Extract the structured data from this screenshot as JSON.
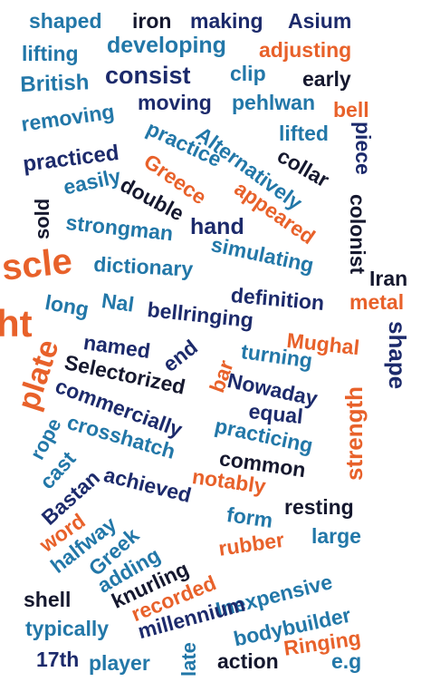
{
  "palette": {
    "navy": "#1c2a6b",
    "blue": "#2277a8",
    "orange": "#e8612a",
    "black": "#15182e"
  },
  "words": [
    {
      "text": "shaped",
      "color": "#2277a8"
    },
    {
      "text": "iron",
      "color": "#15182e"
    },
    {
      "text": "making",
      "color": "#1c2a6b"
    },
    {
      "text": "Asium",
      "color": "#1c2a6b"
    },
    {
      "text": "lifting",
      "color": "#2277a8"
    },
    {
      "text": "developing",
      "color": "#2277a8"
    },
    {
      "text": "adjusting",
      "color": "#e8612a"
    },
    {
      "text": "British",
      "color": "#2277a8"
    },
    {
      "text": "consist",
      "color": "#1c2a6b"
    },
    {
      "text": "clip",
      "color": "#2277a8"
    },
    {
      "text": "early",
      "color": "#15182e"
    },
    {
      "text": "removing",
      "color": "#2277a8"
    },
    {
      "text": "moving",
      "color": "#1c2a6b"
    },
    {
      "text": "pehlwan",
      "color": "#2277a8"
    },
    {
      "text": "bell",
      "color": "#e8612a"
    },
    {
      "text": "practiced",
      "color": "#1c2a6b"
    },
    {
      "text": "practice",
      "color": "#2277a8"
    },
    {
      "text": "Alternatively",
      "color": "#2277a8"
    },
    {
      "text": "lifted",
      "color": "#2277a8"
    },
    {
      "text": "collar",
      "color": "#15182e"
    },
    {
      "text": "piece",
      "color": "#1c2a6b"
    },
    {
      "text": "Greece",
      "color": "#e8612a"
    },
    {
      "text": "easily",
      "color": "#2277a8"
    },
    {
      "text": "double",
      "color": "#15182e"
    },
    {
      "text": "appeared",
      "color": "#e8612a"
    },
    {
      "text": "colonist",
      "color": "#15182e"
    },
    {
      "text": "sold",
      "color": "#15182e"
    },
    {
      "text": "strongman",
      "color": "#2277a8"
    },
    {
      "text": "hand",
      "color": "#1c2a6b"
    },
    {
      "text": "simulating",
      "color": "#2277a8"
    },
    {
      "text": "scle",
      "color": "#e8612a"
    },
    {
      "text": "dictionary",
      "color": "#2277a8"
    },
    {
      "text": "Iran",
      "color": "#15182e"
    },
    {
      "text": "definition",
      "color": "#1c2a6b"
    },
    {
      "text": "metal",
      "color": "#e8612a"
    },
    {
      "text": "ht",
      "color": "#e8612a"
    },
    {
      "text": "long",
      "color": "#2277a8"
    },
    {
      "text": "Nal",
      "color": "#2277a8"
    },
    {
      "text": "bellringing",
      "color": "#1c2a6b"
    },
    {
      "text": "shape",
      "color": "#1c2a6b"
    },
    {
      "text": "plate",
      "color": "#e8612a"
    },
    {
      "text": "named",
      "color": "#1c2a6b"
    },
    {
      "text": "end",
      "color": "#1c2a6b"
    },
    {
      "text": "bar",
      "color": "#e8612a"
    },
    {
      "text": "turning",
      "color": "#2277a8"
    },
    {
      "text": "Mughal",
      "color": "#e8612a"
    },
    {
      "text": "Selectorized",
      "color": "#15182e"
    },
    {
      "text": "commercially",
      "color": "#1c2a6b"
    },
    {
      "text": "Nowaday",
      "color": "#1c2a6b"
    },
    {
      "text": "equal",
      "color": "#1c2a6b"
    },
    {
      "text": "strength",
      "color": "#e8612a"
    },
    {
      "text": "rope",
      "color": "#2277a8"
    },
    {
      "text": "crosshatch",
      "color": "#2277a8"
    },
    {
      "text": "practicing",
      "color": "#2277a8"
    },
    {
      "text": "cast",
      "color": "#2277a8"
    },
    {
      "text": "common",
      "color": "#15182e"
    },
    {
      "text": "Bastan",
      "color": "#1c2a6b"
    },
    {
      "text": "achieved",
      "color": "#1c2a6b"
    },
    {
      "text": "notably",
      "color": "#e8612a"
    },
    {
      "text": "resting",
      "color": "#15182e"
    },
    {
      "text": "word",
      "color": "#e8612a"
    },
    {
      "text": "form",
      "color": "#2277a8"
    },
    {
      "text": "halfway",
      "color": "#2277a8"
    },
    {
      "text": "large",
      "color": "#2277a8"
    },
    {
      "text": "Greek",
      "color": "#2277a8"
    },
    {
      "text": "rubber",
      "color": "#e8612a"
    },
    {
      "text": "adding",
      "color": "#2277a8"
    },
    {
      "text": "knurling",
      "color": "#15182e"
    },
    {
      "text": "recorded",
      "color": "#e8612a"
    },
    {
      "text": "Inexpensive",
      "color": "#2277a8"
    },
    {
      "text": "shell",
      "color": "#15182e"
    },
    {
      "text": "millennium",
      "color": "#1c2a6b"
    },
    {
      "text": "bodybuilder",
      "color": "#2277a8"
    },
    {
      "text": "typically",
      "color": "#2277a8"
    },
    {
      "text": "late",
      "color": "#2277a8"
    },
    {
      "text": "Ringing",
      "color": "#e8612a"
    },
    {
      "text": "17th",
      "color": "#1c2a6b"
    },
    {
      "text": "player",
      "color": "#2277a8"
    },
    {
      "text": "action",
      "color": "#15182e"
    },
    {
      "text": "e.g",
      "color": "#2277a8"
    }
  ]
}
